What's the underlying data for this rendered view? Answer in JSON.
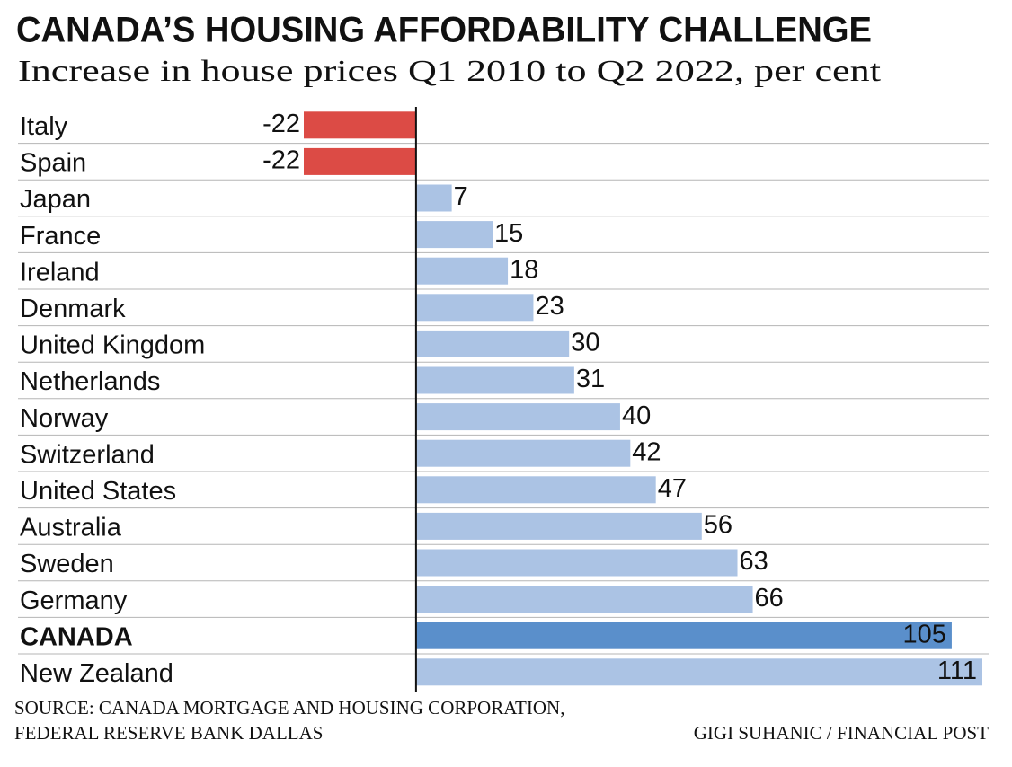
{
  "chart_data": {
    "type": "hbar",
    "title": "CANADA’S HOUSING AFFORDABILITY CHALLENGE",
    "subtitle": "Increase in house prices Q1 2010 to Q2 2022, per cent",
    "categories": [
      "Italy",
      "Spain",
      "Japan",
      "France",
      "Ireland",
      "Denmark",
      "United Kingdom",
      "Netherlands",
      "Norway",
      "Switzerland",
      "United States",
      "Australia",
      "Sweden",
      "Germany",
      "CANADA",
      "New Zealand"
    ],
    "values": [
      -22,
      -22,
      7,
      15,
      18,
      23,
      30,
      31,
      40,
      42,
      47,
      56,
      63,
      66,
      105,
      111
    ],
    "colors": [
      "#dc4b45",
      "#dc4b45",
      "#abc3e4",
      "#abc3e4",
      "#abc3e4",
      "#abc3e4",
      "#abc3e4",
      "#abc3e4",
      "#abc3e4",
      "#abc3e4",
      "#abc3e4",
      "#abc3e4",
      "#abc3e4",
      "#abc3e4",
      "#5a8fcb",
      "#abc3e4"
    ],
    "label_weights": [
      "normal",
      "normal",
      "normal",
      "normal",
      "normal",
      "normal",
      "normal",
      "normal",
      "normal",
      "normal",
      "normal",
      "normal",
      "normal",
      "normal",
      "bold",
      "normal"
    ],
    "xlim": [
      -22,
      111
    ],
    "source": [
      "SOURCE: CANADA MORTGAGE AND HOUSING CORPORATION,",
      "FEDERAL RESERVE BANK DALLAS"
    ],
    "credit": "GIGI SUHANIC / FINANCIAL POST"
  }
}
